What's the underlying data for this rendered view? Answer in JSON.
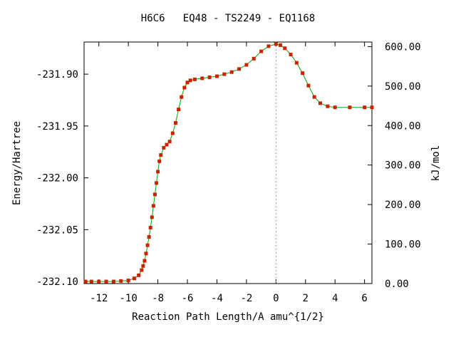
{
  "chart_data": {
    "type": "line",
    "title": "H6C6   EQ48 - TS2249 - EQ1168",
    "xlabel": "Reaction Path Length/A amu^{1/2}",
    "ylabel": "Energy/Hartree",
    "y2label": "kJ/mol",
    "xlim": [
      -13,
      6.5
    ],
    "ylim": [
      -232.102,
      -231.869
    ],
    "y2lim": [
      0,
      611.5
    ],
    "x_ticks": [
      -12,
      -10,
      -8,
      -6,
      -4,
      -2,
      0,
      2,
      4,
      6
    ],
    "x_tick_labels": [
      "-12",
      "-10",
      "-8",
      "-6",
      "-4",
      "-2",
      "0",
      "2",
      "4",
      "6"
    ],
    "y_ticks": [
      -232.1,
      -232.05,
      -232.0,
      -231.95,
      -231.9
    ],
    "y_tick_labels": [
      "-232.10",
      "-232.05",
      "-232.00",
      "-231.95",
      "-231.90"
    ],
    "y2_ticks": [
      0,
      100,
      200,
      300,
      400,
      500,
      600
    ],
    "y2_tick_labels": [
      "0.00",
      "100.00",
      "200.00",
      "300.00",
      "400.00",
      "500.00",
      "600.00"
    ],
    "grid": false,
    "ts_marker_x": 0,
    "colors": {
      "line": "#00aa00",
      "marker": "#cc2200",
      "ts_line": "#999999"
    },
    "series": [
      {
        "x": [
          -12.9,
          -12.5,
          -12.0,
          -11.5,
          -11.0,
          -10.5,
          -10.0,
          -9.6,
          -9.3,
          -9.1,
          -9.0,
          -8.9,
          -8.8,
          -8.7,
          -8.6,
          -8.5,
          -8.4,
          -8.3,
          -8.2,
          -8.1,
          -8.0,
          -7.9,
          -7.8,
          -7.6,
          -7.4,
          -7.2,
          -7.0,
          -6.8,
          -6.6,
          -6.4,
          -6.2,
          -6.0,
          -5.8,
          -5.5,
          -5.0,
          -4.5,
          -4.0,
          -3.5,
          -3.0,
          -2.5,
          -2.0,
          -1.5,
          -1.0,
          -0.5,
          0.0,
          0.3,
          0.6,
          1.0,
          1.4,
          1.8,
          2.2,
          2.6,
          3.0,
          3.5,
          4.0,
          5.0,
          6.0,
          6.5
        ],
        "y": [
          -232.1,
          -232.1,
          -232.1,
          -232.1,
          -232.1,
          -232.0995,
          -232.099,
          -232.097,
          -232.094,
          -232.089,
          -232.085,
          -232.08,
          -232.073,
          -232.065,
          -232.057,
          -232.048,
          -232.038,
          -232.027,
          -232.016,
          -232.005,
          -231.994,
          -231.984,
          -231.978,
          -231.971,
          -231.968,
          -231.965,
          -231.957,
          -231.947,
          -231.934,
          -231.922,
          -231.913,
          -231.908,
          -231.906,
          -231.905,
          -231.904,
          -231.903,
          -231.902,
          -231.9,
          -231.898,
          -231.895,
          -231.891,
          -231.885,
          -231.878,
          -231.873,
          -231.871,
          -231.872,
          -231.875,
          -231.881,
          -231.889,
          -231.899,
          -231.911,
          -231.922,
          -231.928,
          -231.931,
          -231.932,
          -231.932,
          -231.932,
          -231.932
        ]
      }
    ]
  }
}
